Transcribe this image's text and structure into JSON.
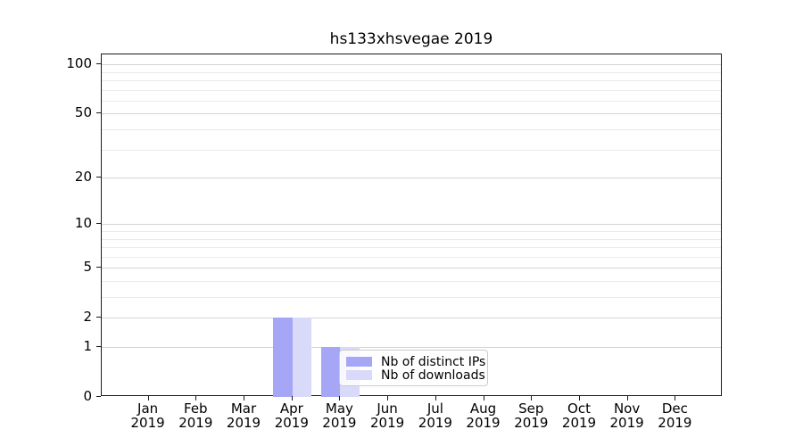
{
  "chart_data": {
    "type": "bar",
    "title": "hs133xhsvegae 2019",
    "xlabel": "",
    "ylabel": "",
    "categories": [
      {
        "month": "Jan",
        "year": "2019"
      },
      {
        "month": "Feb",
        "year": "2019"
      },
      {
        "month": "Mar",
        "year": "2019"
      },
      {
        "month": "Apr",
        "year": "2019"
      },
      {
        "month": "May",
        "year": "2019"
      },
      {
        "month": "Jun",
        "year": "2019"
      },
      {
        "month": "Jul",
        "year": "2019"
      },
      {
        "month": "Aug",
        "year": "2019"
      },
      {
        "month": "Sep",
        "year": "2019"
      },
      {
        "month": "Oct",
        "year": "2019"
      },
      {
        "month": "Nov",
        "year": "2019"
      },
      {
        "month": "Dec",
        "year": "2019"
      }
    ],
    "series": [
      {
        "name": "Nb of distinct IPs",
        "color": "#a6a6f7",
        "values": [
          0,
          0,
          0,
          2,
          1,
          0,
          0,
          0,
          0,
          0,
          0,
          0
        ]
      },
      {
        "name": "Nb of downloads",
        "color": "#d9d9fa",
        "values": [
          0,
          0,
          0,
          2,
          1,
          0,
          0,
          0,
          0,
          0,
          0,
          0
        ]
      }
    ],
    "y_axis": {
      "scale": "log1p",
      "ylim": [
        0,
        115
      ],
      "major_ticks": [
        0,
        1,
        2,
        5,
        10,
        20,
        50,
        100
      ],
      "minor_ticks": [
        3,
        4,
        6,
        7,
        8,
        9,
        30,
        40,
        60,
        70,
        80,
        90
      ]
    },
    "grid": {
      "enabled": true,
      "major_color": "#d4d4d4",
      "minor_color": "#ebebeb"
    },
    "legend": {
      "position": "lower-center"
    }
  },
  "style": {
    "background": "#ffffff",
    "spine_color": "#1a1a1a",
    "text_color": "#000000",
    "legend_border": "#cccccc"
  }
}
